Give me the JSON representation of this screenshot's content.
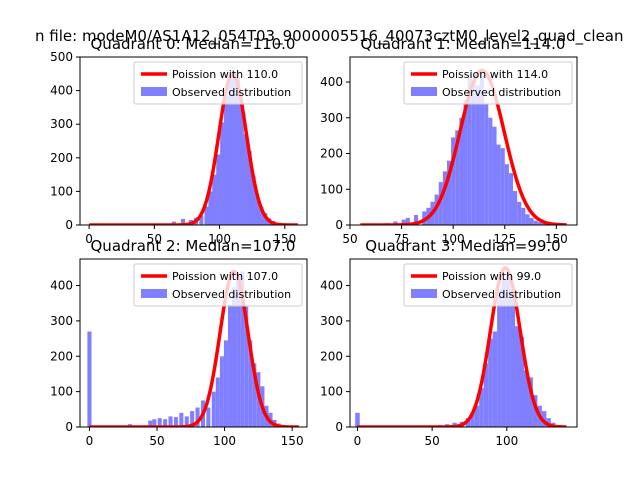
{
  "figure": {
    "suptitle": "n file: modeM0/AS1A12_054T03_9000005516_40073cztM0_level2_quad_clean"
  },
  "chart_data": [
    {
      "type": "histogram",
      "title": "Quadrant 0: Median=110.0",
      "median": 110.0,
      "xlim": [
        -7,
        167
      ],
      "ylim": [
        0,
        500
      ],
      "xticks": [
        0,
        50,
        100,
        150
      ],
      "yticks": [
        0,
        100,
        200,
        300,
        400,
        500
      ],
      "bin_width": 3.2,
      "series": [
        {
          "name": "Poission with 110.0",
          "kind": "poisson",
          "mean": 110.0,
          "amplitude": 450,
          "color": "#ff0000",
          "x_range": [
            0,
            160
          ]
        },
        {
          "name": "Observed distribution",
          "kind": "bars",
          "color": "#7f7fff",
          "bins": [
            [
              60,
              3
            ],
            [
              65,
              10
            ],
            [
              72,
              18
            ],
            [
              78,
              15
            ],
            [
              82,
              22
            ],
            [
              86,
              28
            ],
            [
              90,
              55
            ],
            [
              93,
              100
            ],
            [
              96,
              150
            ],
            [
              99,
              210
            ],
            [
              102,
              305
            ],
            [
              105,
              385
            ],
            [
              108,
              445
            ],
            [
              111,
              455
            ],
            [
              114,
              440
            ],
            [
              117,
              365
            ],
            [
              120,
              270
            ],
            [
              123,
              220
            ],
            [
              126,
              145
            ],
            [
              129,
              85
            ],
            [
              132,
              55
            ],
            [
              135,
              35
            ],
            [
              138,
              20
            ],
            [
              141,
              12
            ],
            [
              144,
              6
            ],
            [
              147,
              3
            ]
          ]
        }
      ],
      "legend_position": "upper right"
    },
    {
      "type": "histogram",
      "title": "Quadrant 1: Median=114.0",
      "median": 114.0,
      "xlim": [
        50,
        160
      ],
      "ylim": [
        0,
        470
      ],
      "xticks": [
        50,
        75,
        100,
        125,
        150
      ],
      "yticks": [
        0,
        100,
        200,
        300,
        400
      ],
      "bin_width": 2.0,
      "series": [
        {
          "name": "Poission with 114.0",
          "kind": "poisson",
          "mean": 114.0,
          "amplitude": 432,
          "color": "#ff0000",
          "x_range": [
            55,
            155
          ]
        },
        {
          "name": "Observed distribution",
          "kind": "bars",
          "color": "#7f7fff",
          "bins": [
            [
              64,
              3
            ],
            [
              68,
              5
            ],
            [
              72,
              10
            ],
            [
              76,
              15
            ],
            [
              78,
              20
            ],
            [
              82,
              28
            ],
            [
              86,
              38
            ],
            [
              88,
              48
            ],
            [
              90,
              65
            ],
            [
              92,
              85
            ],
            [
              94,
              120
            ],
            [
              96,
              150
            ],
            [
              98,
              180
            ],
            [
              100,
              245
            ],
            [
              102,
              265
            ],
            [
              104,
              300
            ],
            [
              106,
              350
            ],
            [
              108,
              420
            ],
            [
              110,
              405
            ],
            [
              112,
              390
            ],
            [
              114,
              420
            ],
            [
              116,
              340
            ],
            [
              118,
              300
            ],
            [
              120,
              275
            ],
            [
              122,
              225
            ],
            [
              124,
              215
            ],
            [
              126,
              170
            ],
            [
              128,
              145
            ],
            [
              130,
              95
            ],
            [
              132,
              65
            ],
            [
              134,
              48
            ],
            [
              136,
              30
            ],
            [
              138,
              20
            ],
            [
              140,
              12
            ],
            [
              142,
              8
            ],
            [
              144,
              5
            ],
            [
              146,
              3
            ]
          ]
        }
      ],
      "legend_position": "upper right"
    },
    {
      "type": "histogram",
      "title": "Quadrant 2: Median=107.0",
      "median": 107.0,
      "xlim": [
        -7,
        161
      ],
      "ylim": [
        0,
        475
      ],
      "xticks": [
        0,
        50,
        100,
        150
      ],
      "yticks": [
        0,
        100,
        200,
        300,
        400
      ],
      "bin_width": 3.0,
      "series": [
        {
          "name": "Poission with 107.0",
          "kind": "poisson",
          "mean": 107.0,
          "amplitude": 440,
          "color": "#ff0000",
          "x_range": [
            0,
            155
          ]
        },
        {
          "name": "Observed distribution",
          "kind": "bars",
          "color": "#7f7fff",
          "bins": [
            [
              0,
              270
            ],
            [
              30,
              8
            ],
            [
              45,
              18
            ],
            [
              48,
              22
            ],
            [
              52,
              25
            ],
            [
              56,
              22
            ],
            [
              60,
              30
            ],
            [
              64,
              28
            ],
            [
              68,
              40
            ],
            [
              72,
              30
            ],
            [
              76,
              45
            ],
            [
              80,
              55
            ],
            [
              84,
              75
            ],
            [
              88,
              55
            ],
            [
              92,
              100
            ],
            [
              95,
              140
            ],
            [
              98,
              200
            ],
            [
              101,
              245
            ],
            [
              104,
              345
            ],
            [
              107,
              395
            ],
            [
              110,
              430
            ],
            [
              113,
              440
            ],
            [
              116,
              340
            ],
            [
              119,
              245
            ],
            [
              122,
              180
            ],
            [
              125,
              155
            ],
            [
              128,
              115
            ],
            [
              131,
              60
            ],
            [
              134,
              40
            ],
            [
              137,
              20
            ],
            [
              140,
              10
            ],
            [
              143,
              5
            ]
          ]
        }
      ],
      "legend_position": "upper right"
    },
    {
      "type": "histogram",
      "title": "Quadrant 3: Median=99.0",
      "median": 99.0,
      "xlim": [
        -5,
        147
      ],
      "ylim": [
        0,
        475
      ],
      "xticks": [
        0,
        50,
        100
      ],
      "yticks": [
        0,
        100,
        200,
        300,
        400
      ],
      "bin_width": 3.0,
      "series": [
        {
          "name": "Poission with 99.0",
          "kind": "poisson",
          "mean": 99.0,
          "amplitude": 450,
          "color": "#ff0000",
          "x_range": [
            0,
            140
          ]
        },
        {
          "name": "Observed distribution",
          "kind": "bars",
          "color": "#7f7fff",
          "bins": [
            [
              0,
              40
            ],
            [
              55,
              5
            ],
            [
              60,
              8
            ],
            [
              65,
              12
            ],
            [
              70,
              15
            ],
            [
              74,
              25
            ],
            [
              77,
              40
            ],
            [
              80,
              60
            ],
            [
              83,
              110
            ],
            [
              86,
              180
            ],
            [
              89,
              250
            ],
            [
              92,
              270
            ],
            [
              95,
              390
            ],
            [
              98,
              420
            ],
            [
              101,
              435
            ],
            [
              104,
              390
            ],
            [
              107,
              285
            ],
            [
              110,
              255
            ],
            [
              113,
              160
            ],
            [
              116,
              140
            ],
            [
              119,
              90
            ],
            [
              122,
              60
            ],
            [
              125,
              45
            ],
            [
              128,
              25
            ],
            [
              131,
              12
            ],
            [
              134,
              5
            ]
          ]
        }
      ],
      "legend_position": "upper right"
    }
  ]
}
